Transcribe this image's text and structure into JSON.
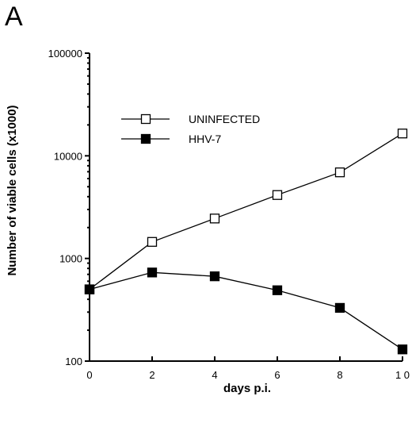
{
  "panel_label": "A",
  "chart_data": {
    "type": "line",
    "title": "",
    "xlabel": "days  p.i.",
    "ylabel": "Number  of  viable  cells  (x1000)",
    "yscale": "log",
    "xlim": [
      0,
      10
    ],
    "ylim": [
      100,
      100000
    ],
    "xticks": [
      "0",
      "2",
      "4",
      "6",
      "8",
      "1 0"
    ],
    "xtick_values": [
      0,
      2,
      4,
      6,
      8,
      10
    ],
    "yticks": [
      "100",
      "1000",
      "10000",
      "100000"
    ],
    "ytick_values": [
      100,
      1000,
      10000,
      100000
    ],
    "grid": false,
    "legend_position": "top-center",
    "x": [
      0,
      2,
      4,
      6,
      8,
      10
    ],
    "series": [
      {
        "name": "UNINFECTED",
        "marker": "open-square",
        "values": [
          500,
          1450,
          2450,
          4150,
          6900,
          16500
        ]
      },
      {
        "name": "HHV-7",
        "marker": "filled-square",
        "values": [
          500,
          730,
          670,
          490,
          330,
          130
        ]
      }
    ]
  }
}
